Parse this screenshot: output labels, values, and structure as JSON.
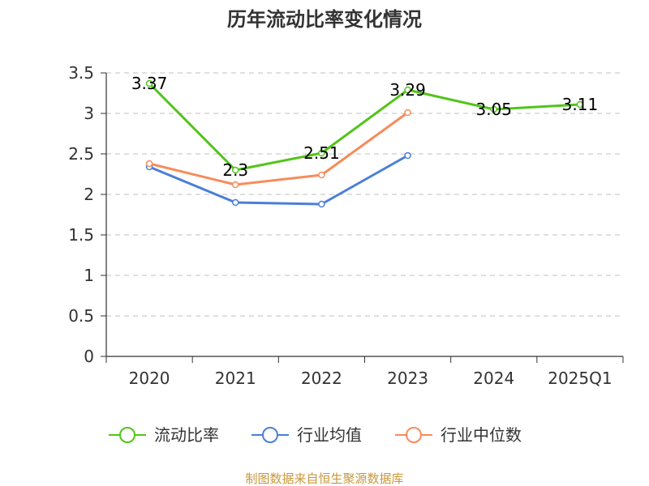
{
  "chart_data": {
    "type": "line",
    "title": "历年流动比率变化情况",
    "categories": [
      "2020",
      "2021",
      "2022",
      "2023",
      "2024",
      "2025Q1"
    ],
    "ylim": [
      0,
      3.5
    ],
    "yticks": [
      "0",
      "0.5",
      "1",
      "1.5",
      "2",
      "2.5",
      "3",
      "3.5"
    ],
    "ytick_values": [
      0,
      0.5,
      1,
      1.5,
      2,
      2.5,
      3,
      3.5
    ],
    "grid": true,
    "legend_position": "bottom",
    "series": [
      {
        "name": "流动比率",
        "color": "#52c41a",
        "values": [
          3.37,
          2.3,
          2.51,
          3.29,
          3.05,
          3.11
        ],
        "data_labels": [
          "3.37",
          "2.3",
          "2.51",
          "3.29",
          "3.05",
          "3.11"
        ]
      },
      {
        "name": "行业均值",
        "color": "#4a7fd8",
        "values": [
          2.34,
          1.9,
          1.88,
          2.48,
          null,
          null
        ]
      },
      {
        "name": "行业中位数",
        "color": "#f78c5a",
        "values": [
          2.38,
          2.12,
          2.24,
          3.01,
          null,
          null
        ]
      }
    ]
  },
  "source": {
    "text": "制图数据来自恒生聚源数据库",
    "color": "#c8973a"
  }
}
